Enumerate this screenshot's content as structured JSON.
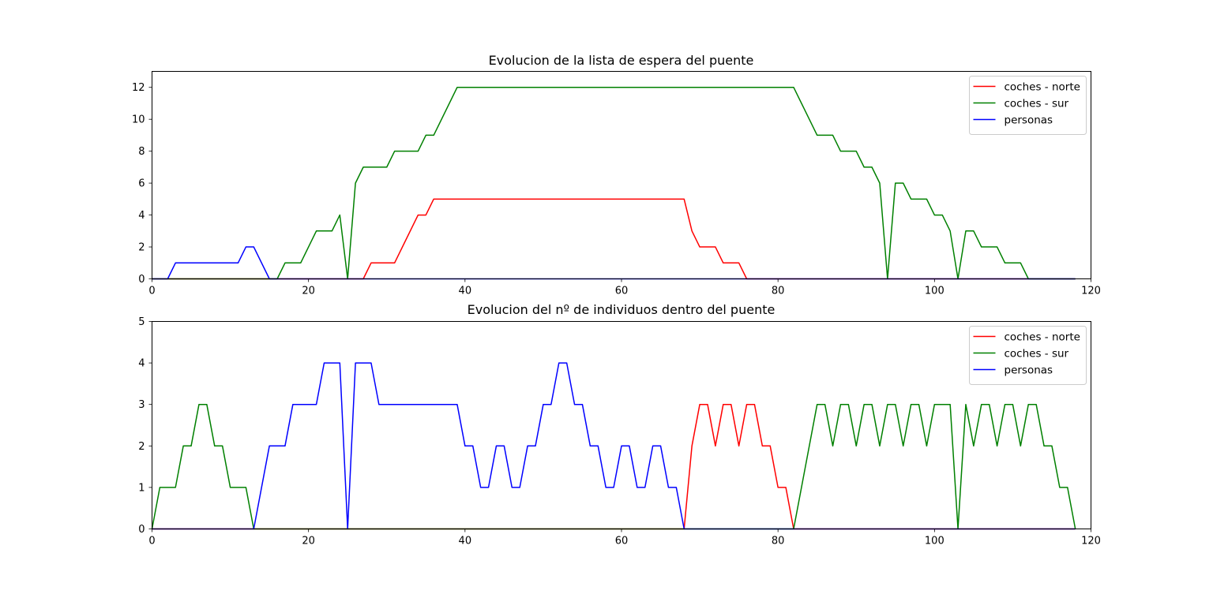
{
  "chart_data": [
    {
      "type": "line",
      "title": "Evolucion de la lista de espera del puente",
      "xlabel": "",
      "ylabel": "",
      "xlim": [
        0,
        120
      ],
      "ylim": [
        0,
        13
      ],
      "xticks": [
        0,
        20,
        40,
        60,
        80,
        100,
        120
      ],
      "yticks": [
        0,
        2,
        4,
        6,
        8,
        10,
        12
      ],
      "grid": false,
      "legend_position": "top-right",
      "series": [
        {
          "name": "coches - norte",
          "color": "#ff0000",
          "points": [
            [
              0,
              0
            ],
            [
              27,
              0
            ],
            [
              28,
              1
            ],
            [
              31,
              1
            ],
            [
              34,
              4
            ],
            [
              35,
              4
            ],
            [
              36,
              5
            ],
            [
              68,
              5
            ],
            [
              69,
              3
            ],
            [
              70,
              2
            ],
            [
              72,
              2
            ],
            [
              73,
              1
            ],
            [
              75,
              1
            ],
            [
              76,
              0
            ],
            [
              118,
              0
            ]
          ]
        },
        {
          "name": "coches - sur",
          "color": "#008000",
          "points": [
            [
              0,
              0
            ],
            [
              16,
              0
            ],
            [
              17,
              1
            ],
            [
              19,
              1
            ],
            [
              21,
              3
            ],
            [
              23,
              3
            ],
            [
              24,
              4
            ],
            [
              25,
              0
            ],
            [
              26,
              6
            ],
            [
              27,
              7
            ],
            [
              30,
              7
            ],
            [
              31,
              8
            ],
            [
              34,
              8
            ],
            [
              35,
              9
            ],
            [
              36,
              9
            ],
            [
              39,
              12
            ],
            [
              82,
              12
            ],
            [
              85,
              9
            ],
            [
              87,
              9
            ],
            [
              88,
              8
            ],
            [
              90,
              8
            ],
            [
              91,
              7
            ],
            [
              92,
              7
            ],
            [
              93,
              6
            ],
            [
              94,
              0
            ],
            [
              95,
              6
            ],
            [
              96,
              6
            ],
            [
              97,
              5
            ],
            [
              99,
              5
            ],
            [
              100,
              4
            ],
            [
              101,
              4
            ],
            [
              102,
              3
            ],
            [
              103,
              0
            ],
            [
              104,
              3
            ],
            [
              105,
              3
            ],
            [
              106,
              2
            ],
            [
              108,
              2
            ],
            [
              109,
              1
            ],
            [
              111,
              1
            ],
            [
              112,
              0
            ],
            [
              118,
              0
            ]
          ]
        },
        {
          "name": "personas",
          "color": "#0000ff",
          "points": [
            [
              0,
              0
            ],
            [
              2,
              0
            ],
            [
              3,
              1
            ],
            [
              11,
              1
            ],
            [
              12,
              2
            ],
            [
              13,
              2
            ],
            [
              15,
              0
            ],
            [
              118,
              0
            ]
          ]
        }
      ]
    },
    {
      "type": "line",
      "title": "Evolucion del nº de individuos dentro del puente",
      "xlabel": "",
      "ylabel": "",
      "xlim": [
        0,
        120
      ],
      "ylim": [
        0,
        5
      ],
      "xticks": [
        0,
        20,
        40,
        60,
        80,
        100,
        120
      ],
      "yticks": [
        0,
        1,
        2,
        3,
        4,
        5
      ],
      "grid": false,
      "legend_position": "top-right",
      "series": [
        {
          "name": "coches - norte",
          "color": "#ff0000",
          "points": [
            [
              0,
              0
            ],
            [
              68,
              0
            ],
            [
              69,
              2
            ],
            [
              70,
              3
            ],
            [
              71,
              3
            ],
            [
              72,
              2
            ],
            [
              73,
              3
            ],
            [
              74,
              3
            ],
            [
              75,
              2
            ],
            [
              76,
              3
            ],
            [
              77,
              3
            ],
            [
              78,
              2
            ],
            [
              79,
              2
            ],
            [
              80,
              1
            ],
            [
              81,
              1
            ],
            [
              82,
              0
            ],
            [
              118,
              0
            ]
          ]
        },
        {
          "name": "coches - sur",
          "color": "#008000",
          "points": [
            [
              0,
              0
            ],
            [
              1,
              1
            ],
            [
              3,
              1
            ],
            [
              4,
              2
            ],
            [
              5,
              2
            ],
            [
              6,
              3
            ],
            [
              7,
              3
            ],
            [
              8,
              2
            ],
            [
              9,
              2
            ],
            [
              10,
              1
            ],
            [
              12,
              1
            ],
            [
              13,
              0
            ],
            [
              82,
              0
            ],
            [
              85,
              3
            ],
            [
              86,
              3
            ],
            [
              87,
              2
            ],
            [
              88,
              3
            ],
            [
              89,
              3
            ],
            [
              90,
              2
            ],
            [
              91,
              3
            ],
            [
              92,
              3
            ],
            [
              93,
              2
            ],
            [
              94,
              3
            ],
            [
              95,
              3
            ],
            [
              96,
              2
            ],
            [
              97,
              3
            ],
            [
              98,
              3
            ],
            [
              99,
              2
            ],
            [
              100,
              3
            ],
            [
              102,
              3
            ],
            [
              103,
              0
            ],
            [
              104,
              3
            ],
            [
              105,
              2
            ],
            [
              106,
              3
            ],
            [
              107,
              3
            ],
            [
              108,
              2
            ],
            [
              109,
              3
            ],
            [
              110,
              3
            ],
            [
              111,
              2
            ],
            [
              112,
              3
            ],
            [
              113,
              3
            ],
            [
              114,
              2
            ],
            [
              115,
              2
            ],
            [
              116,
              1
            ],
            [
              117,
              1
            ],
            [
              118,
              0
            ]
          ]
        },
        {
          "name": "personas",
          "color": "#0000ff",
          "points": [
            [
              0,
              0
            ],
            [
              13,
              0
            ],
            [
              15,
              2
            ],
            [
              17,
              2
            ],
            [
              18,
              3
            ],
            [
              21,
              3
            ],
            [
              22,
              4
            ],
            [
              24,
              4
            ],
            [
              25,
              0
            ],
            [
              26,
              4
            ],
            [
              28,
              4
            ],
            [
              29,
              3
            ],
            [
              39,
              3
            ],
            [
              40,
              2
            ],
            [
              41,
              2
            ],
            [
              42,
              1
            ],
            [
              43,
              1
            ],
            [
              44,
              2
            ],
            [
              45,
              2
            ],
            [
              46,
              1
            ],
            [
              47,
              1
            ],
            [
              48,
              2
            ],
            [
              49,
              2
            ],
            [
              50,
              3
            ],
            [
              51,
              3
            ],
            [
              52,
              4
            ],
            [
              53,
              4
            ],
            [
              54,
              3
            ],
            [
              55,
              3
            ],
            [
              56,
              2
            ],
            [
              57,
              2
            ],
            [
              58,
              1
            ],
            [
              59,
              1
            ],
            [
              60,
              2
            ],
            [
              61,
              2
            ],
            [
              62,
              1
            ],
            [
              63,
              1
            ],
            [
              64,
              2
            ],
            [
              65,
              2
            ],
            [
              66,
              1
            ],
            [
              67,
              1
            ],
            [
              68,
              0
            ],
            [
              118,
              0
            ]
          ]
        }
      ]
    }
  ]
}
